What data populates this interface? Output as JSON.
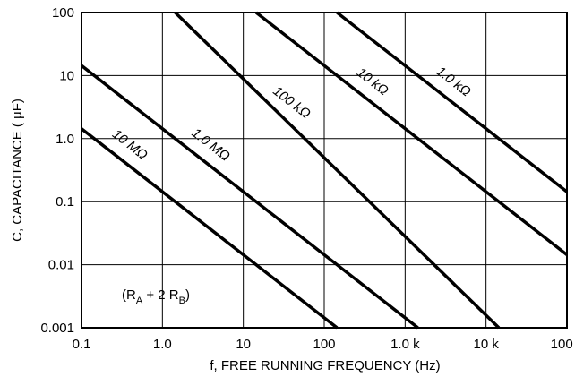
{
  "chart_data": {
    "type": "line",
    "x_scale": "log",
    "y_scale": "log",
    "xlabel": "f, FREE RUNNING FREQUENCY (Hz)",
    "ylabel": "C, CAPACITANCE ( µF)",
    "xlim": [
      0.1,
      100000
    ],
    "ylim": [
      0.001,
      100
    ],
    "grid": true,
    "x_ticks": [
      0.1,
      1,
      10,
      100,
      1000,
      10000,
      100000
    ],
    "x_tick_labels": [
      "0.1",
      "1.0",
      "10",
      "100",
      "1.0 k",
      "10 k",
      "100 k"
    ],
    "y_ticks": [
      0.001,
      0.01,
      0.1,
      1,
      10,
      100
    ],
    "y_tick_labels": [
      "0.001",
      "0.01",
      "0.1",
      "1.0",
      "10",
      "100"
    ],
    "series": [
      {
        "name": "10 MΩ",
        "x": [
          0.1,
          144
        ],
        "y": [
          1.44,
          0.001
        ]
      },
      {
        "name": "1.0 MΩ",
        "x": [
          0.1,
          1440
        ],
        "y": [
          14.4,
          0.001
        ]
      },
      {
        "name": "100 kΩ",
        "x": [
          1.44,
          14400
        ],
        "y": [
          100,
          0.001
        ]
      },
      {
        "name": "10 kΩ",
        "x": [
          14.4,
          100000
        ],
        "y": [
          100,
          0.0144
        ]
      },
      {
        "name": "1.0 kΩ",
        "x": [
          144,
          100000
        ],
        "y": [
          100,
          0.144
        ]
      }
    ],
    "annotations": [
      {
        "text_main": "(R",
        "sub_a": "A",
        "text_mid": " + 2 R",
        "sub_b": "B",
        "text_end": ")"
      }
    ],
    "line_color": "#000000",
    "grid_color": "#000000"
  }
}
